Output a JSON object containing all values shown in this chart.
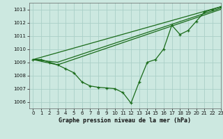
{
  "title": "Graphe pression niveau de la mer (hPa)",
  "bg_color": "#cce8e0",
  "grid_color": "#aacfc7",
  "line_color": "#1a6b1a",
  "xlim": [
    -0.5,
    23
  ],
  "ylim": [
    1005.5,
    1013.5
  ],
  "yticks": [
    1006,
    1007,
    1008,
    1009,
    1010,
    1011,
    1012,
    1013
  ],
  "xticks": [
    0,
    1,
    2,
    3,
    4,
    5,
    6,
    7,
    8,
    9,
    10,
    11,
    12,
    13,
    14,
    15,
    16,
    17,
    18,
    19,
    20,
    21,
    22,
    23
  ],
  "main_x": [
    0,
    1,
    2,
    3,
    4,
    5,
    6,
    7,
    8,
    9,
    10,
    11,
    12,
    13,
    14,
    15,
    16,
    17,
    18,
    19,
    20,
    21,
    22,
    23
  ],
  "main_y": [
    1009.2,
    1009.2,
    1009.0,
    1008.8,
    1008.5,
    1008.2,
    1007.5,
    1007.2,
    1007.1,
    1007.05,
    1007.0,
    1006.7,
    1005.9,
    1007.5,
    1009.0,
    1009.2,
    1010.0,
    1011.8,
    1011.1,
    1011.4,
    1012.1,
    1012.8,
    1013.0,
    1013.2
  ],
  "trend_lines": [
    {
      "x": [
        0,
        23
      ],
      "y": [
        1009.2,
        1013.2
      ]
    },
    {
      "x": [
        0,
        3,
        23
      ],
      "y": [
        1009.2,
        1009.0,
        1013.1
      ]
    },
    {
      "x": [
        0,
        3,
        23
      ],
      "y": [
        1009.2,
        1008.8,
        1013.0
      ]
    }
  ]
}
